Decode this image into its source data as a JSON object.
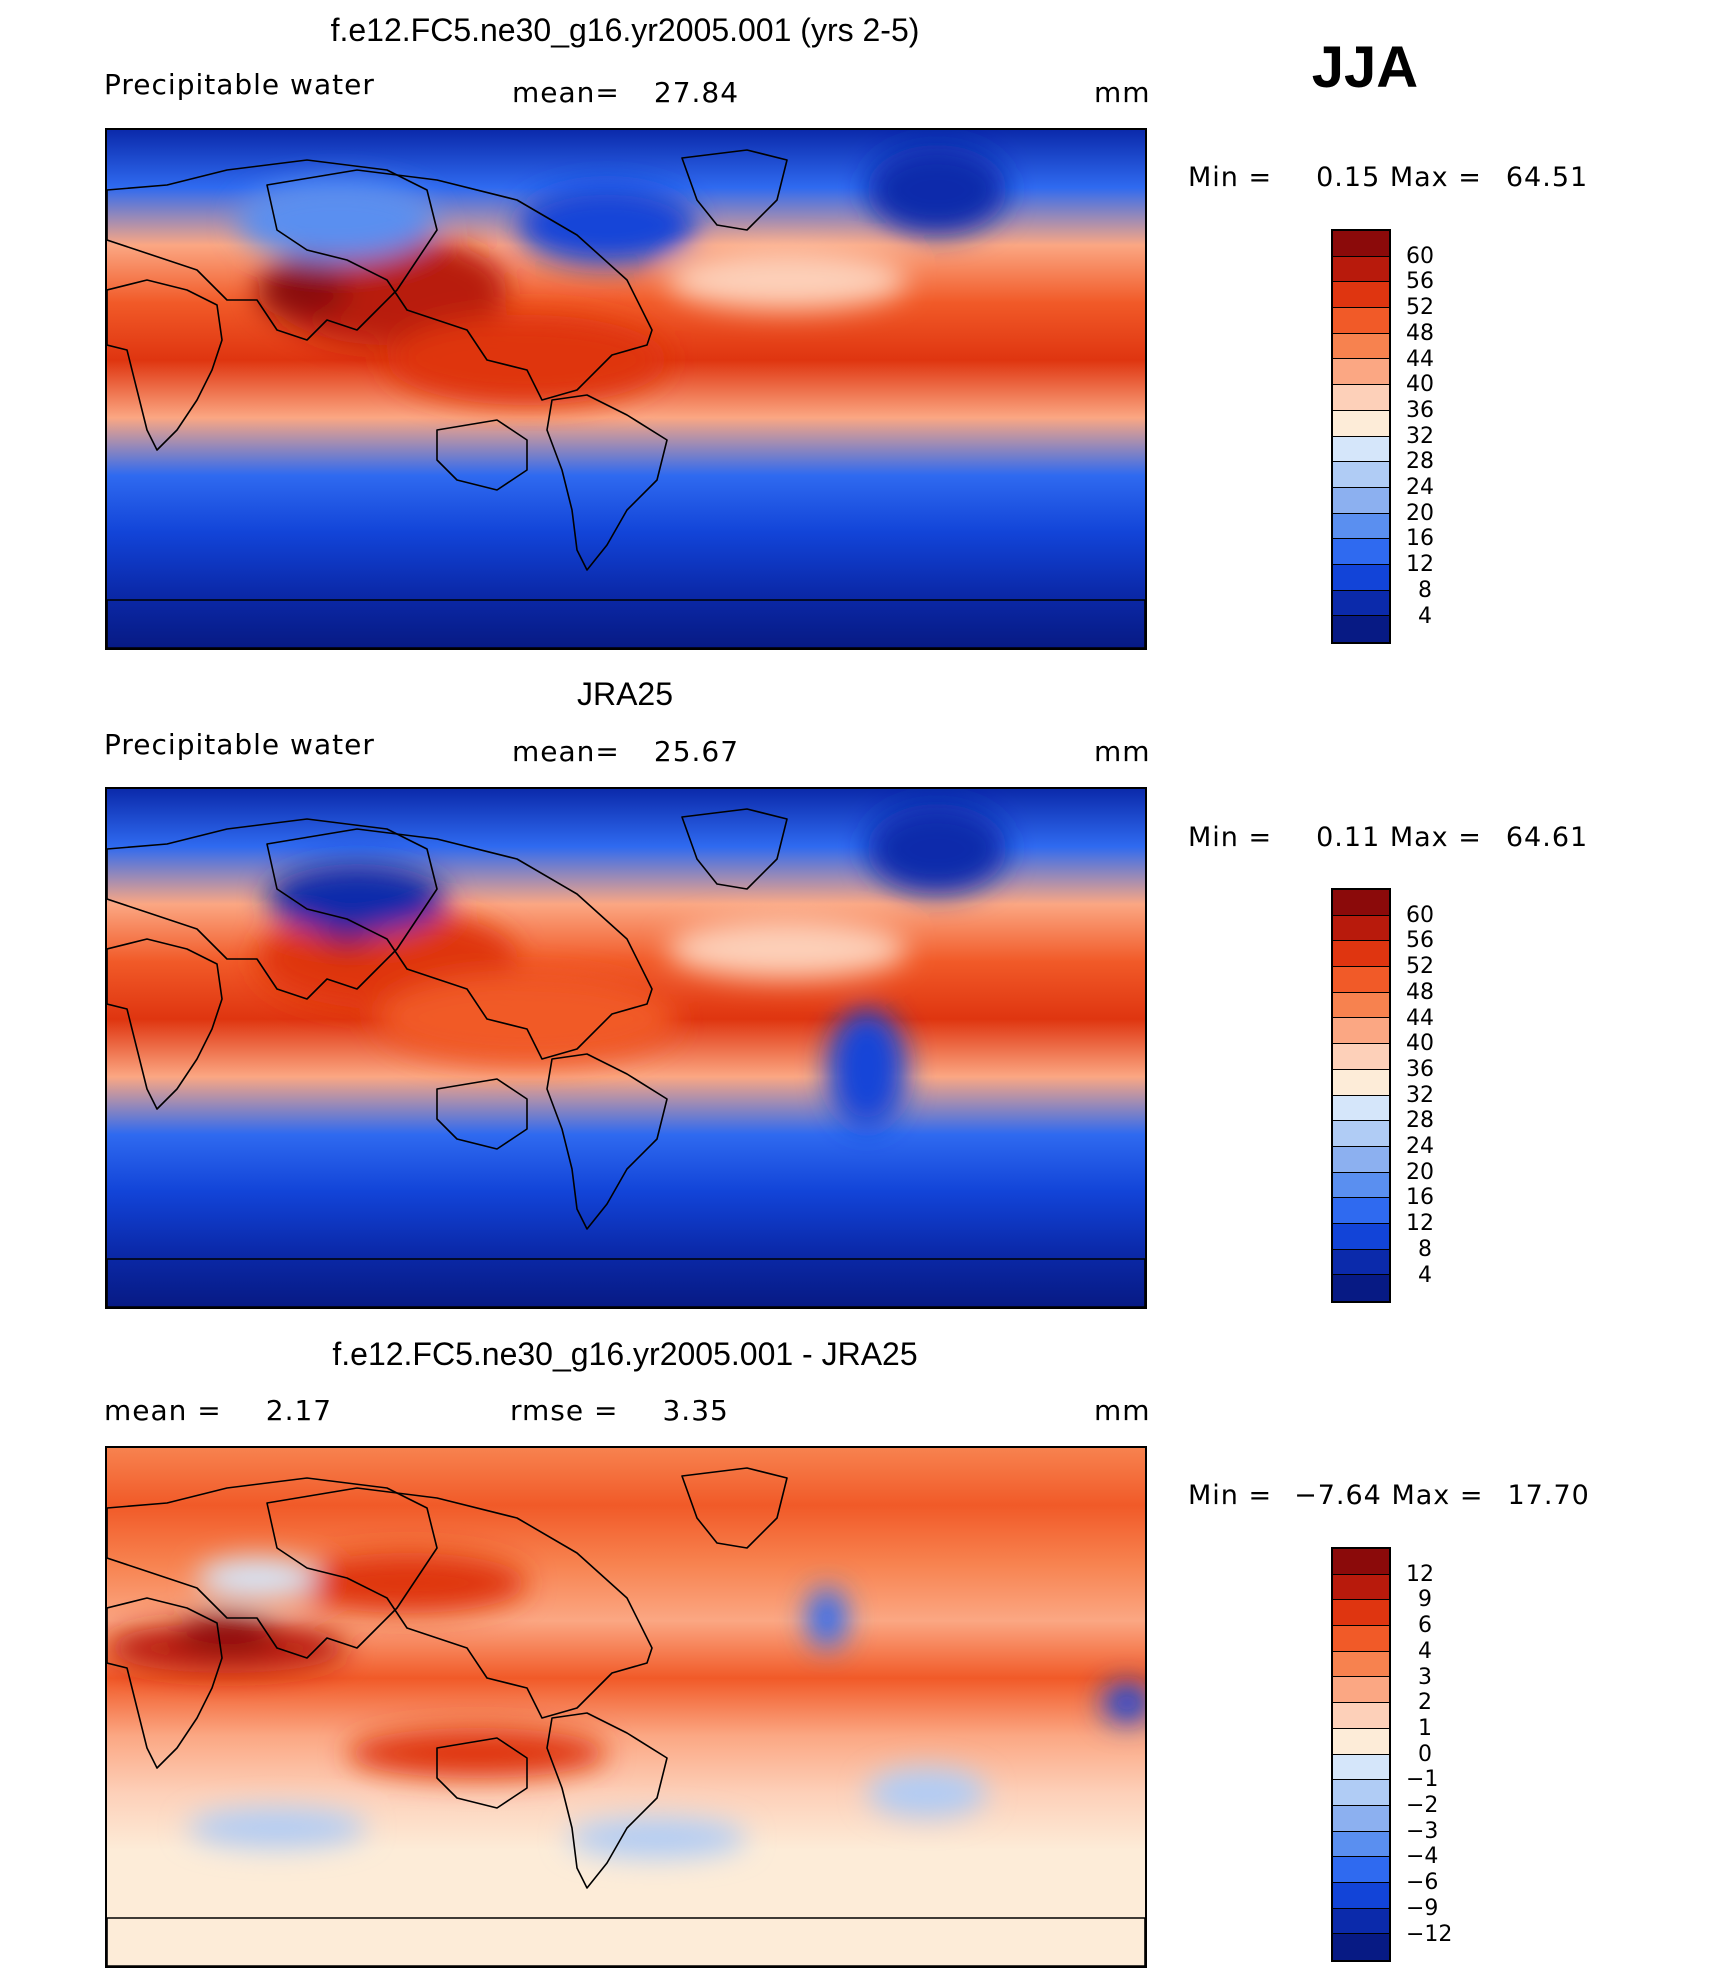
{
  "season": "JJA",
  "chart_data": [
    {
      "type": "heatmap",
      "title": "f.e12.FC5.ne30_g16.yr2005.001 (yrs 2-5)",
      "variable": "Precipitable water",
      "stat_label": "mean=",
      "stat_value": "27.84",
      "units": "mm",
      "min_label": "Min =",
      "min": "0.15",
      "max_label": "Max =",
      "max": "64.51",
      "levels": [
        "60",
        "56",
        "52",
        "48",
        "44",
        "40",
        "36",
        "32",
        "28",
        "24",
        "20",
        "16",
        "12",
        "8",
        "4"
      ],
      "colors": [
        "#8b0a0a",
        "#b81a0c",
        "#df3510",
        "#f15a28",
        "#f7824f",
        "#fba783",
        "#fdd0b9",
        "#fdecd8",
        "#d5e6fa",
        "#b0ccf5",
        "#8cb0f0",
        "#5a8ff0",
        "#2f6af0",
        "#1244d8",
        "#0b2aab",
        "#071a84"
      ]
    },
    {
      "type": "heatmap",
      "title": "JRA25",
      "variable": "Precipitable water",
      "stat_label": "mean=",
      "stat_value": "25.67",
      "units": "mm",
      "min_label": "Min =",
      "min": "0.11",
      "max_label": "Max =",
      "max": "64.61",
      "levels": [
        "60",
        "56",
        "52",
        "48",
        "44",
        "40",
        "36",
        "32",
        "28",
        "24",
        "20",
        "16",
        "12",
        "8",
        "4"
      ],
      "colors": [
        "#8b0a0a",
        "#b81a0c",
        "#df3510",
        "#f15a28",
        "#f7824f",
        "#fba783",
        "#fdd0b9",
        "#fdecd8",
        "#d5e6fa",
        "#b0ccf5",
        "#8cb0f0",
        "#5a8ff0",
        "#2f6af0",
        "#1244d8",
        "#0b2aab",
        "#071a84"
      ]
    },
    {
      "type": "heatmap",
      "title": "f.e12.FC5.ne30_g16.yr2005.001 - JRA25",
      "variable": "",
      "mean_label": "mean =",
      "mean_value": "2.17",
      "stat_label": "rmse =",
      "stat_value": "3.35",
      "units": "mm",
      "min_label": "Min =",
      "min": "−7.64",
      "max_label": "Max =",
      "max": "17.70",
      "levels": [
        "12",
        "9",
        "6",
        "4",
        "3",
        "2",
        "1",
        "0",
        "−1",
        "−2",
        "−3",
        "−4",
        "−6",
        "−9",
        "−12"
      ],
      "colors": [
        "#8b0a0a",
        "#b81a0c",
        "#df3510",
        "#f15a28",
        "#f7824f",
        "#fba783",
        "#fdd0b9",
        "#fdecd8",
        "#d5e6fa",
        "#b0ccf5",
        "#8cb0f0",
        "#5a8ff0",
        "#2f6af0",
        "#1244d8",
        "#0b2aab",
        "#071a84"
      ]
    }
  ]
}
